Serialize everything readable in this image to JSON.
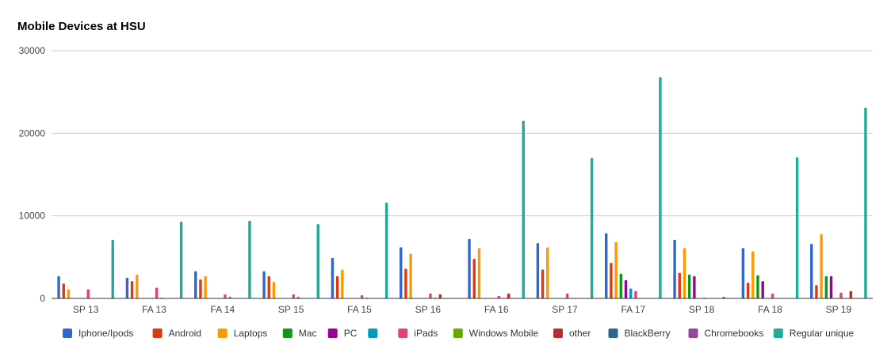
{
  "chart_data": {
    "type": "bar",
    "title": "Mobile Devices at HSU",
    "xlabel": "",
    "ylabel": "",
    "ylim": [
      0,
      30000
    ],
    "yticks": [
      0,
      10000,
      20000,
      30000
    ],
    "grid": true,
    "legend_position": "bottom",
    "categories": [
      "SP 13",
      "FA 13",
      "FA 14",
      "SP 15",
      "FA 15",
      "SP 16",
      "FA 16",
      "SP 17",
      "FA 17",
      "SP 18",
      "FA 18",
      "SP 19"
    ],
    "series": [
      {
        "name": "Iphone/Ipods",
        "color": "#3366cc",
        "values": [
          2700,
          2500,
          3300,
          3300,
          4900,
          6200,
          7200,
          6700,
          7900,
          7100,
          6100,
          6600
        ]
      },
      {
        "name": "Android",
        "color": "#dc3912",
        "values": [
          1800,
          2100,
          2300,
          2700,
          2700,
          3600,
          4800,
          3500,
          4300,
          3100,
          1900,
          1600
        ]
      },
      {
        "name": "Laptops",
        "color": "#ff9900",
        "values": [
          1100,
          2900,
          2700,
          2000,
          3500,
          5400,
          6100,
          6200,
          6800,
          6100,
          5700,
          7800
        ]
      },
      {
        "name": "Mac",
        "color": "#109618",
        "values": [
          0,
          0,
          0,
          0,
          0,
          0,
          0,
          0,
          3000,
          2900,
          2800,
          2700
        ]
      },
      {
        "name": "PC",
        "color": "#990099",
        "values": [
          0,
          0,
          0,
          0,
          0,
          0,
          0,
          0,
          2200,
          2700,
          2100,
          2700
        ]
      },
      {
        "name": "iPads",
        "color": "#0099c6",
        "values": [
          0,
          0,
          0,
          0,
          0,
          0,
          0,
          0,
          1200,
          0,
          0,
          0
        ]
      },
      {
        "name": "iPads",
        "color": "#dd4477",
        "values": [
          1100,
          1300,
          500,
          500,
          400,
          600,
          300,
          600,
          900,
          100,
          600,
          700
        ]
      },
      {
        "name": "Windows Mobile",
        "color": "#66aa00",
        "values": [
          0,
          100,
          200,
          200,
          100,
          100,
          0,
          0,
          0,
          0,
          0,
          0
        ]
      },
      {
        "name": "other",
        "color": "#b82e2e",
        "values": [
          0,
          0,
          0,
          0,
          0,
          500,
          600,
          0,
          0,
          0,
          0,
          900
        ]
      },
      {
        "name": "BlackBerry",
        "color": "#316395",
        "values": [
          0,
          0,
          0,
          0,
          0,
          0,
          0,
          0,
          0,
          0,
          0,
          0
        ]
      },
      {
        "name": "Chromebooks",
        "color": "#994499",
        "values": [
          0,
          0,
          0,
          0,
          0,
          0,
          0,
          0,
          0,
          200,
          0,
          0
        ]
      },
      {
        "name": "Regular unique",
        "color": "#22aa99",
        "values": [
          7100,
          9300,
          9400,
          9000,
          11600,
          0,
          21500,
          17000,
          26800,
          0,
          17100,
          23100
        ]
      }
    ],
    "legend": [
      {
        "name": "Iphone/Ipods",
        "color": "#3366cc"
      },
      {
        "name": "Android",
        "color": "#dc3912"
      },
      {
        "name": "Laptops",
        "color": "#ff9900"
      },
      {
        "name": "Mac",
        "color": "#109618"
      },
      {
        "name": "PC",
        "color": "#990099"
      },
      {
        "name": "",
        "color": "#0099c6"
      },
      {
        "name": "iPads",
        "color": "#dd4477"
      },
      {
        "name": "Windows Mobile",
        "color": "#66aa00"
      },
      {
        "name": "other",
        "color": "#b82e2e"
      },
      {
        "name": "BlackBerry",
        "color": "#316395"
      },
      {
        "name": "Chromebooks",
        "color": "#994499"
      },
      {
        "name": "Regular unique",
        "color": "#22aa99"
      }
    ]
  }
}
